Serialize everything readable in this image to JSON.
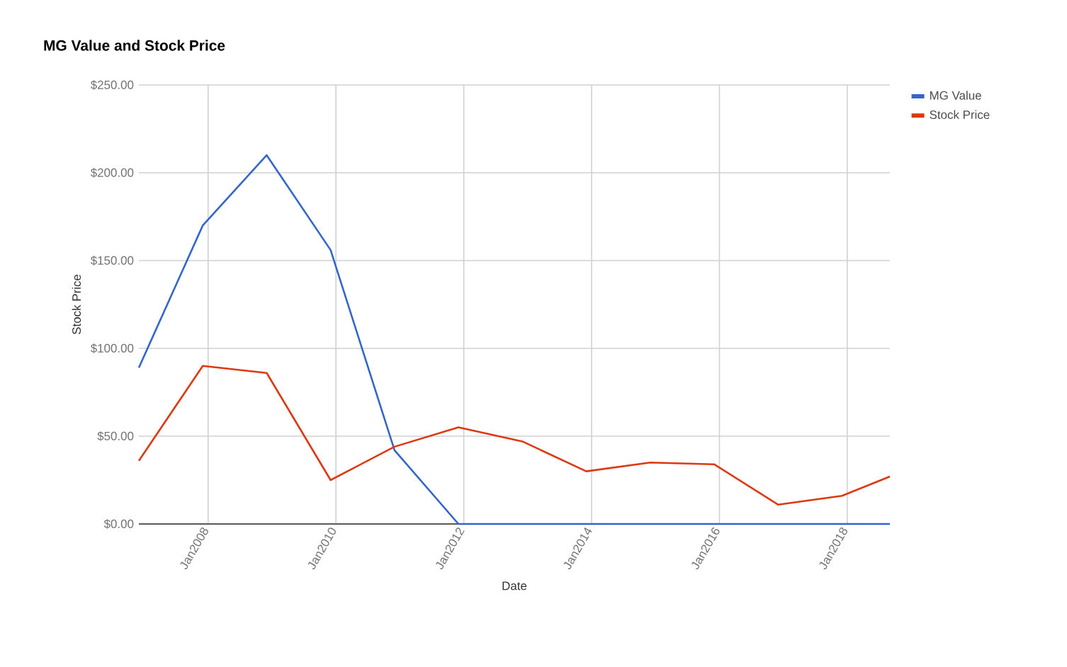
{
  "chart_data": {
    "type": "line",
    "title": "MG Value and Stock Price",
    "xlabel": "Date",
    "ylabel": "Stock Price",
    "x": [
      "2006-12",
      "2007-12",
      "2008-12",
      "2009-12",
      "2010-12",
      "2011-12",
      "2012-12",
      "2013-12",
      "2014-12",
      "2015-12",
      "2016-12",
      "2017-12",
      "2018-09"
    ],
    "series": [
      {
        "name": "MG Value",
        "color": "#3366cc",
        "values": [
          89,
          170,
          210,
          156,
          42,
          0,
          0,
          0,
          0,
          0,
          0,
          0,
          0
        ]
      },
      {
        "name": "Stock Price",
        "color": "#dc3912",
        "values": [
          36,
          90,
          86,
          25,
          44,
          55,
          47,
          30,
          35,
          34,
          11,
          16,
          27
        ]
      }
    ],
    "xlim": [
      "2006-12",
      "2018-09"
    ],
    "xticks": [
      {
        "value": "2008-01",
        "label": "Jan2008"
      },
      {
        "value": "2010-01",
        "label": "Jan2010"
      },
      {
        "value": "2012-01",
        "label": "Jan2012"
      },
      {
        "value": "2014-01",
        "label": "Jan2014"
      },
      {
        "value": "2016-01",
        "label": "Jan2016"
      },
      {
        "value": "2018-01",
        "label": "Jan2018"
      }
    ],
    "ylim": [
      0,
      250
    ],
    "yticks": [
      {
        "value": 0,
        "label": "$0.00"
      },
      {
        "value": 50,
        "label": "$50.00"
      },
      {
        "value": 100,
        "label": "$100.00"
      },
      {
        "value": 150,
        "label": "$150.00"
      },
      {
        "value": 200,
        "label": "$200.00"
      },
      {
        "value": 250,
        "label": "$250.00"
      }
    ],
    "grid": true,
    "legend": "top right",
    "marker": "none",
    "line_style": "solid"
  }
}
